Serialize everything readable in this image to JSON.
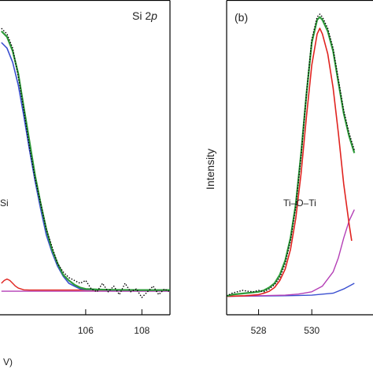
{
  "chart_data": [
    {
      "type": "line",
      "panel_label": "",
      "title": "Si 2p",
      "title_main": "Si 2",
      "title_italic": "p",
      "xlabel": "V)",
      "ylabel": "",
      "xlim": [
        102.95,
        109.0
      ],
      "ylim": [
        0,
        1
      ],
      "x_ticks": [
        106,
        108
      ],
      "x_tick_labels": [
        "106",
        "108"
      ],
      "annotations": [
        {
          "text": "Si",
          "x": 103.0,
          "y": 0.41
        }
      ],
      "colors": {
        "fit": "#2e9b3a",
        "data": "#000000",
        "comp1": "#3a4fd0",
        "comp2": "#e0231f",
        "comp3": "#b43fb6"
      },
      "series": [
        {
          "style": "dotted",
          "x": [
            103.0,
            103.2,
            103.4,
            103.6,
            103.8,
            104.0,
            104.2,
            104.4,
            104.6,
            104.8,
            105.0,
            105.2,
            105.4,
            105.6,
            105.8,
            106.0,
            106.2,
            106.4,
            106.6,
            106.8,
            107.0,
            107.2,
            107.4,
            107.6,
            107.8,
            108.0,
            108.2,
            108.4,
            108.6,
            108.8,
            109.0
          ],
          "y": [
            0.95,
            0.93,
            0.88,
            0.78,
            0.66,
            0.53,
            0.42,
            0.33,
            0.24,
            0.18,
            0.12,
            0.09,
            0.07,
            0.06,
            0.05,
            0.06,
            0.03,
            0.02,
            0.05,
            0.02,
            0.04,
            0.01,
            0.05,
            0.02,
            0.03,
            0.0,
            0.02,
            0.04,
            0.01,
            0.03,
            0.02
          ]
        },
        {
          "x": [
            103.0,
            103.2,
            103.4,
            103.6,
            103.8,
            104.0,
            104.2,
            104.4,
            104.6,
            104.8,
            105.0,
            105.2,
            105.4,
            105.6,
            105.8,
            106.0,
            106.4,
            107.0,
            108.0,
            109.0
          ],
          "y": [
            0.94,
            0.92,
            0.87,
            0.79,
            0.67,
            0.55,
            0.43,
            0.33,
            0.24,
            0.17,
            0.12,
            0.08,
            0.06,
            0.045,
            0.035,
            0.03,
            0.028,
            0.027,
            0.026,
            0.026
          ]
        },
        {
          "x": [
            103.0,
            103.2,
            103.4,
            103.6,
            103.8,
            104.0,
            104.2,
            104.4,
            104.6,
            104.8,
            105.0,
            105.2,
            105.4,
            105.6,
            105.8,
            106.0,
            107.0,
            109.0
          ],
          "y": [
            0.9,
            0.88,
            0.83,
            0.75,
            0.64,
            0.52,
            0.41,
            0.31,
            0.22,
            0.16,
            0.11,
            0.075,
            0.05,
            0.04,
            0.03,
            0.028,
            0.026,
            0.026
          ]
        },
        {
          "x": [
            103.0,
            103.1,
            103.2,
            103.3,
            103.4,
            103.5,
            103.6,
            103.8,
            104.0,
            104.5,
            105.0,
            106.0,
            109.0
          ],
          "y": [
            0.05,
            0.06,
            0.065,
            0.06,
            0.05,
            0.04,
            0.033,
            0.027,
            0.026,
            0.026,
            0.026,
            0.026,
            0.026
          ]
        },
        {
          "x": [
            103.0,
            104.0,
            105.0,
            106.0,
            107.0,
            108.0,
            109.0
          ],
          "y": [
            0.022,
            0.022,
            0.022,
            0.022,
            0.022,
            0.022,
            0.022
          ]
        }
      ]
    },
    {
      "type": "line",
      "panel_label": "(b)",
      "title": "",
      "xlabel": "",
      "ylabel": "Intensity",
      "xlim": [
        526.8,
        532.3
      ],
      "ylim": [
        0,
        1
      ],
      "x_ticks": [
        528,
        530
      ],
      "x_tick_labels": [
        "528",
        "530"
      ],
      "annotations": [
        {
          "text": "Ti–O–Ti",
          "x": 529.35,
          "y": 0.3
        }
      ],
      "colors": {
        "fit": "#2e9b3a",
        "data": "#000000",
        "comp1": "#e0231f",
        "comp2": "#b43fb6",
        "comp3": "#3a4fd0"
      },
      "series": [
        {
          "style": "dotted",
          "x": [
            526.8,
            527.0,
            527.2,
            527.4,
            527.6,
            527.8,
            528.0,
            528.2,
            528.4,
            528.6,
            528.8,
            529.0,
            529.2,
            529.4,
            529.6,
            529.8,
            530.0,
            530.2,
            530.3,
            530.4,
            530.6,
            530.8,
            531.0,
            531.2,
            531.4,
            531.6
          ],
          "y": [
            0.005,
            0.015,
            0.02,
            0.025,
            0.022,
            0.02,
            0.025,
            0.02,
            0.03,
            0.045,
            0.07,
            0.12,
            0.2,
            0.32,
            0.5,
            0.72,
            0.91,
            0.99,
            1.0,
            0.99,
            0.95,
            0.88,
            0.77,
            0.66,
            0.58,
            0.52
          ]
        },
        {
          "x": [
            526.8,
            527.0,
            527.5,
            528.0,
            528.2,
            528.4,
            528.6,
            528.8,
            529.0,
            529.2,
            529.4,
            529.6,
            529.8,
            530.0,
            530.2,
            530.3,
            530.4,
            530.6,
            530.8,
            531.0,
            531.2,
            531.4,
            531.6
          ],
          "y": [
            0.005,
            0.01,
            0.015,
            0.02,
            0.025,
            0.035,
            0.05,
            0.08,
            0.13,
            0.21,
            0.33,
            0.51,
            0.72,
            0.9,
            0.98,
            0.99,
            0.98,
            0.94,
            0.87,
            0.76,
            0.65,
            0.57,
            0.51
          ]
        },
        {
          "x": [
            526.8,
            527.5,
            528.0,
            528.2,
            528.4,
            528.6,
            528.8,
            529.0,
            529.2,
            529.4,
            529.6,
            529.8,
            530.0,
            530.2,
            530.3,
            530.4,
            530.6,
            530.8,
            531.0,
            531.2,
            531.4,
            531.5
          ],
          "y": [
            0.004,
            0.006,
            0.01,
            0.015,
            0.022,
            0.035,
            0.06,
            0.1,
            0.17,
            0.28,
            0.44,
            0.64,
            0.82,
            0.93,
            0.95,
            0.93,
            0.86,
            0.74,
            0.58,
            0.4,
            0.26,
            0.2
          ]
        },
        {
          "x": [
            526.8,
            528.0,
            529.0,
            529.5,
            530.0,
            530.4,
            530.8,
            531.0,
            531.2,
            531.4,
            531.6
          ],
          "y": [
            0.004,
            0.006,
            0.008,
            0.012,
            0.02,
            0.04,
            0.09,
            0.14,
            0.21,
            0.27,
            0.31
          ]
        },
        {
          "x": [
            526.8,
            528.0,
            529.0,
            530.0,
            530.8,
            531.2,
            531.6
          ],
          "y": [
            0.004,
            0.005,
            0.006,
            0.008,
            0.015,
            0.03,
            0.05
          ]
        }
      ]
    }
  ]
}
